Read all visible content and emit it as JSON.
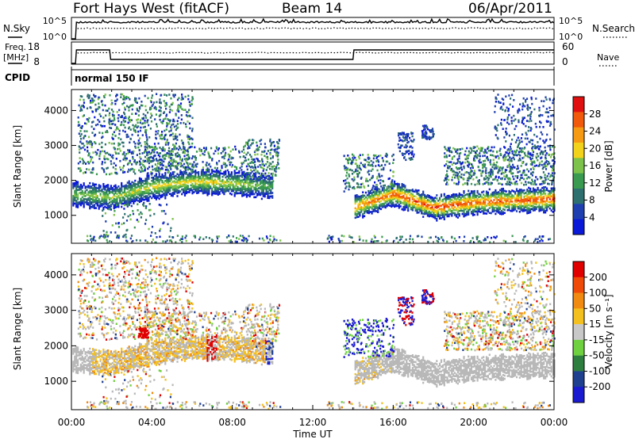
{
  "header": {
    "station": "Fort Hays West (fitACF)",
    "beam": "Beam 14",
    "date": "06/Apr/2011"
  },
  "panels": {
    "noise": {
      "left_label": "N.Sky",
      "right_label": "N.Search",
      "left_ticks": [
        "10^5",
        "10^0"
      ],
      "right_ticks": [
        "10^5",
        "10^0"
      ]
    },
    "freq": {
      "left_label_line1": "Freq.",
      "left_label_line2": "[MHz]",
      "right_label": "Nave",
      "left_ticks": [
        "18",
        "8"
      ],
      "right_ticks": [
        "60",
        "0"
      ]
    },
    "cpid": {
      "label": "CPID",
      "value": "normal 150 IF"
    }
  },
  "colors": {
    "power_scale": [
      "#0a18d8",
      "#1f3fb0",
      "#2e6f6f",
      "#3a9a50",
      "#7dc24a",
      "#f2d21a",
      "#f59a12",
      "#f05a0a",
      "#e01010"
    ],
    "velocity_scale": [
      "#1a1ad0",
      "#1f3f8f",
      "#2e7f3f",
      "#6fd040",
      "#c8c8c8",
      "#f4c020",
      "#f08a10",
      "#f04a08",
      "#e00000"
    ],
    "ground_scatter": "#b8b8b8"
  },
  "chart_data": [
    {
      "type": "heatmap",
      "name": "power",
      "ylabel": "Slant Range [km]",
      "yticks": [
        "1000",
        "2000",
        "3000",
        "4000"
      ],
      "ylim": [
        200,
        4600
      ],
      "xlim_hours": [
        0,
        24
      ],
      "colorbar_label": "Power [dB]",
      "colorbar_ticks": [
        "28",
        "24",
        "20",
        "16",
        "12",
        "8",
        "4"
      ],
      "colorbar_range": [
        0,
        32
      ],
      "main_echo_band": {
        "time_ut": [
          "00:00",
          "02:00",
          "04:00",
          "06:00",
          "08:00",
          "10:00",
          "13:00",
          "14:00",
          "16:00",
          "18:00",
          "20:00",
          "22:00",
          "24:00"
        ],
        "range_km": [
          1650,
          1550,
          1850,
          2000,
          1950,
          1850,
          null,
          1250,
          1650,
          1250,
          1400,
          1450,
          1500
        ],
        "peak_power_db": [
          14,
          16,
          18,
          20,
          18,
          12,
          null,
          24,
          26,
          28,
          26,
          26,
          28
        ]
      }
    },
    {
      "type": "heatmap",
      "name": "velocity",
      "ylabel": "Slant Range [km]",
      "yticks": [
        "1000",
        "2000",
        "3000",
        "4000"
      ],
      "ylim": [
        200,
        4600
      ],
      "xlim_hours": [
        0,
        24
      ],
      "colorbar_label": "Velocity [m s⁻¹]",
      "colorbar_ticks": [
        "200",
        "100",
        "50",
        "15",
        "-15",
        "-50",
        "-100",
        "-200"
      ],
      "colorbar_range": [
        -250,
        250
      ],
      "xticks": [
        "00:00",
        "04:00",
        "08:00",
        "12:00",
        "16:00",
        "20:00",
        "00:00"
      ],
      "xlabel": "Time UT"
    }
  ]
}
